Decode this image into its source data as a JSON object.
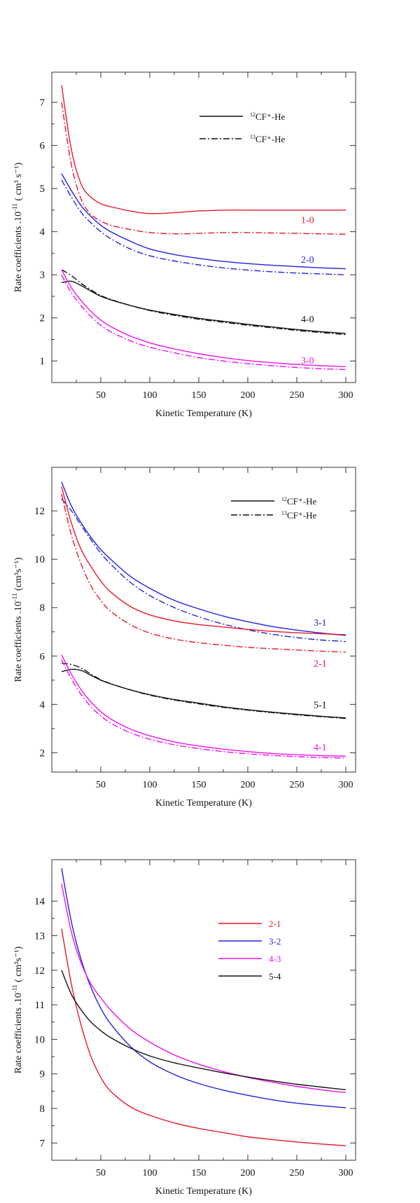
{
  "chart_data": [
    {
      "type": "line",
      "xlabel": "Kinetic Temperature (K)",
      "ylabel": "Rate coefficients .10",
      "ylabel_exp": "-11",
      "ylabel_units": " ( cm³ s⁻¹)",
      "xlim": [
        0,
        310
      ],
      "ylim": [
        0.5,
        7.7
      ],
      "xticks": [
        50,
        100,
        150,
        200,
        250,
        300
      ],
      "yticks": [
        1,
        2,
        3,
        4,
        5,
        6,
        7
      ],
      "xtick_labels": [
        "50",
        "100",
        "150",
        "200",
        "250",
        "300"
      ],
      "ytick_labels": [
        "1",
        "2",
        "3",
        "4",
        "5",
        "6",
        "7"
      ],
      "x": [
        10,
        20,
        30,
        40,
        50,
        60,
        80,
        100,
        125,
        150,
        175,
        200,
        225,
        250,
        275,
        300
      ],
      "legend": [
        {
          "pre": "12",
          "label": "CF⁺-He",
          "dash": "solid"
        },
        {
          "pre": "13",
          "label": "CF⁺-He",
          "dash": "dashdot"
        }
      ],
      "series": [
        {
          "name": "1-0",
          "isotope": "12",
          "color": "#e8192c",
          "values": [
            7.4,
            5.9,
            5.1,
            4.8,
            4.65,
            4.58,
            4.48,
            4.42,
            4.44,
            4.48,
            4.5,
            4.5,
            4.5,
            4.5,
            4.5,
            4.5
          ]
        },
        {
          "name": "1-0",
          "isotope": "13",
          "color": "#e8192c",
          "values": [
            7.0,
            5.55,
            4.75,
            4.4,
            4.25,
            4.15,
            4.05,
            3.98,
            3.95,
            3.96,
            3.98,
            3.98,
            3.97,
            3.96,
            3.95,
            3.94
          ]
        },
        {
          "name": "2-0",
          "isotope": "12",
          "color": "#2222dd",
          "values": [
            5.35,
            4.95,
            4.6,
            4.35,
            4.15,
            4.0,
            3.78,
            3.6,
            3.47,
            3.38,
            3.31,
            3.26,
            3.22,
            3.19,
            3.16,
            3.14
          ]
        },
        {
          "name": "2-0",
          "isotope": "13",
          "color": "#2222dd",
          "values": [
            5.2,
            4.8,
            4.45,
            4.2,
            4.0,
            3.84,
            3.6,
            3.44,
            3.32,
            3.23,
            3.16,
            3.11,
            3.07,
            3.04,
            3.02,
            3.0
          ]
        },
        {
          "name": "4-0",
          "isotope": "12",
          "color": "#111111",
          "values": [
            2.82,
            2.85,
            2.75,
            2.62,
            2.5,
            2.42,
            2.29,
            2.18,
            2.08,
            1.99,
            1.92,
            1.85,
            1.79,
            1.73,
            1.68,
            1.64
          ]
        },
        {
          "name": "4-0",
          "isotope": "13",
          "color": "#111111",
          "values": [
            3.12,
            2.98,
            2.8,
            2.65,
            2.52,
            2.43,
            2.29,
            2.17,
            2.06,
            1.97,
            1.9,
            1.83,
            1.77,
            1.71,
            1.66,
            1.61
          ]
        },
        {
          "name": "3-0",
          "isotope": "12",
          "color": "#ee11ee",
          "values": [
            3.12,
            2.7,
            2.4,
            2.15,
            1.95,
            1.8,
            1.58,
            1.42,
            1.28,
            1.17,
            1.08,
            1.01,
            0.96,
            0.92,
            0.89,
            0.87
          ]
        },
        {
          "name": "3-0",
          "isotope": "13",
          "color": "#ee11ee",
          "values": [
            3.0,
            2.58,
            2.28,
            2.03,
            1.83,
            1.68,
            1.47,
            1.32,
            1.19,
            1.08,
            1.0,
            0.94,
            0.89,
            0.85,
            0.82,
            0.8
          ]
        }
      ],
      "annotations": [
        {
          "text": "1-0",
          "x": 245,
          "y": 4.28,
          "color": "#e8192c"
        },
        {
          "text": "2-0",
          "x": 245,
          "y": 3.36,
          "color": "#2222dd"
        },
        {
          "text": "4-0",
          "x": 245,
          "y": 1.98,
          "color": "#111111"
        },
        {
          "text": "3-0",
          "x": 245,
          "y": 1.02,
          "color": "#ee11ee"
        }
      ]
    },
    {
      "type": "line",
      "xlabel": "Kinetic Temperature (K)",
      "ylabel": "Rate coefficients .10",
      "ylabel_exp": "-11",
      "ylabel_units": " (cm³s⁻¹)",
      "xlim": [
        0,
        310
      ],
      "ylim": [
        1.2,
        13.8
      ],
      "xticks": [
        50,
        100,
        150,
        200,
        250,
        300
      ],
      "yticks": [
        2,
        4,
        6,
        8,
        10,
        12
      ],
      "xtick_labels": [
        "50",
        "100",
        "150",
        "200",
        "250",
        "300"
      ],
      "ytick_labels": [
        "2",
        "4",
        "6",
        "8",
        "10",
        "12"
      ],
      "x": [
        10,
        20,
        30,
        40,
        50,
        60,
        80,
        100,
        125,
        150,
        175,
        200,
        225,
        250,
        275,
        300
      ],
      "legend": [
        {
          "pre": "12",
          "label": "CF⁺-He",
          "dash": "solid"
        },
        {
          "pre": "13",
          "label": "CF⁺-He",
          "dash": "dashdot"
        }
      ],
      "series": [
        {
          "name": "3-1",
          "isotope": "12",
          "color": "#2222dd",
          "values": [
            13.2,
            12.2,
            11.5,
            10.9,
            10.4,
            10.0,
            9.3,
            8.8,
            8.3,
            7.95,
            7.65,
            7.42,
            7.22,
            7.07,
            6.95,
            6.85
          ]
        },
        {
          "name": "3-1",
          "isotope": "13",
          "color": "#2222dd",
          "values": [
            12.5,
            12.0,
            11.4,
            10.8,
            10.25,
            9.8,
            9.05,
            8.5,
            8.0,
            7.62,
            7.32,
            7.08,
            6.9,
            6.76,
            6.66,
            6.6
          ]
        },
        {
          "name": "2-1",
          "isotope": "12",
          "color": "#e8192c",
          "values": [
            13.0,
            11.5,
            10.4,
            9.7,
            9.1,
            8.65,
            8.05,
            7.7,
            7.45,
            7.3,
            7.2,
            7.1,
            7.02,
            6.96,
            6.92,
            6.88
          ]
        },
        {
          "name": "2-1",
          "isotope": "13",
          "color": "#e8192c",
          "values": [
            12.7,
            11.0,
            9.8,
            8.9,
            8.3,
            7.85,
            7.3,
            6.95,
            6.7,
            6.55,
            6.45,
            6.36,
            6.3,
            6.25,
            6.2,
            6.16
          ]
        },
        {
          "name": "5-1",
          "isotope": "12",
          "color": "#111111",
          "values": [
            5.35,
            5.45,
            5.4,
            5.2,
            5.0,
            4.85,
            4.6,
            4.4,
            4.2,
            4.05,
            3.9,
            3.78,
            3.68,
            3.59,
            3.51,
            3.44
          ]
        },
        {
          "name": "5-1",
          "isotope": "13",
          "color": "#111111",
          "values": [
            5.7,
            5.65,
            5.5,
            5.25,
            5.02,
            4.86,
            4.6,
            4.38,
            4.18,
            4.02,
            3.88,
            3.76,
            3.66,
            3.57,
            3.49,
            3.42
          ]
        },
        {
          "name": "4-1",
          "isotope": "12",
          "color": "#ee11ee",
          "values": [
            6.05,
            5.25,
            4.6,
            4.1,
            3.7,
            3.4,
            2.98,
            2.7,
            2.45,
            2.28,
            2.15,
            2.05,
            1.97,
            1.92,
            1.88,
            1.86
          ]
        },
        {
          "name": "4-1",
          "isotope": "13",
          "color": "#ee11ee",
          "values": [
            5.85,
            5.05,
            4.4,
            3.9,
            3.52,
            3.23,
            2.83,
            2.56,
            2.33,
            2.17,
            2.05,
            1.96,
            1.89,
            1.84,
            1.8,
            1.78
          ]
        }
      ],
      "annotations": [
        {
          "text": "3-1",
          "x": 248,
          "y": 7.4,
          "color": "#2222dd"
        },
        {
          "text": "2-1",
          "x": 248,
          "y": 5.7,
          "color": "#e8192c"
        },
        {
          "text": "5-1",
          "x": 248,
          "y": 4.0,
          "color": "#111111"
        },
        {
          "text": "4-1",
          "x": 248,
          "y": 2.25,
          "color": "#ee11ee"
        }
      ]
    },
    {
      "type": "line",
      "xlabel": "Kinetic Temperature (K)",
      "ylabel": "Rate coefficients .10",
      "ylabel_exp": "-11",
      "ylabel_units": " ( cm³s⁻¹)",
      "xlim": [
        0,
        310
      ],
      "ylim": [
        6.5,
        15.2
      ],
      "xticks": [
        50,
        100,
        150,
        200,
        250,
        300
      ],
      "yticks": [
        7,
        8,
        9,
        10,
        11,
        12,
        13,
        14
      ],
      "xtick_labels": [
        "50",
        "100",
        "150",
        "200",
        "250",
        "300"
      ],
      "ytick_labels": [
        "7",
        "8",
        "9",
        "10",
        "11",
        "12",
        "13",
        "14"
      ],
      "x": [
        10,
        20,
        30,
        40,
        50,
        60,
        80,
        100,
        125,
        150,
        175,
        200,
        225,
        250,
        275,
        300
      ],
      "legend": [
        {
          "pre": "",
          "label": "2-1",
          "dash": "solid",
          "color": "#e8192c"
        },
        {
          "pre": "",
          "label": "3-2",
          "dash": "solid",
          "color": "#2222dd"
        },
        {
          "pre": "",
          "label": "4-3",
          "dash": "solid",
          "color": "#ee11ee"
        },
        {
          "pre": "",
          "label": "5-4",
          "dash": "solid",
          "color": "#111111"
        }
      ],
      "series": [
        {
          "name": "2-1",
          "color": "#e8192c",
          "values": [
            13.2,
            11.6,
            10.4,
            9.5,
            8.9,
            8.5,
            8.05,
            7.8,
            7.58,
            7.42,
            7.3,
            7.18,
            7.1,
            7.03,
            6.97,
            6.92
          ]
        },
        {
          "name": "3-2",
          "color": "#2222dd",
          "values": [
            14.95,
            13.4,
            12.3,
            11.5,
            10.9,
            10.45,
            9.8,
            9.35,
            8.98,
            8.72,
            8.53,
            8.38,
            8.25,
            8.15,
            8.08,
            8.02
          ]
        },
        {
          "name": "4-3",
          "color": "#ee11ee",
          "values": [
            14.5,
            13.1,
            12.2,
            11.6,
            11.2,
            10.85,
            10.3,
            9.92,
            9.55,
            9.28,
            9.07,
            8.9,
            8.76,
            8.64,
            8.54,
            8.46
          ]
        },
        {
          "name": "5-4",
          "color": "#111111",
          "values": [
            12.0,
            11.3,
            10.85,
            10.5,
            10.25,
            10.05,
            9.75,
            9.52,
            9.32,
            9.17,
            9.03,
            8.91,
            8.8,
            8.7,
            8.62,
            8.54
          ]
        }
      ],
      "annotations": []
    }
  ]
}
